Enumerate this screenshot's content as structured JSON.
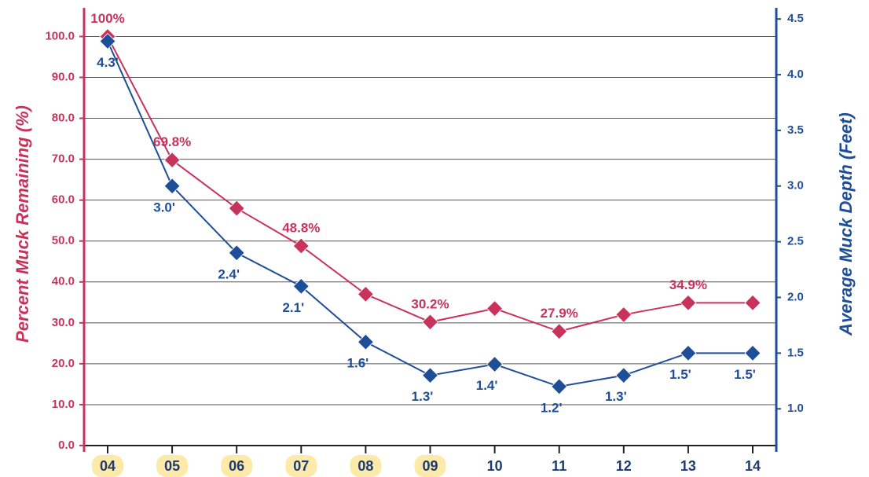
{
  "chart_data": {
    "type": "line",
    "y_label": "Percent Muck Remaining (%)",
    "y2_label": "Average Muck Depth (Feet)",
    "categories": [
      "04",
      "05",
      "06",
      "07",
      "08",
      "09",
      "10",
      "11",
      "12",
      "13",
      "14"
    ],
    "series": [
      {
        "name": "Percent Muck Remaining",
        "color": "#c8335c",
        "axis": "y",
        "values": [
          100,
          69.8,
          58,
          48.8,
          37,
          30.2,
          33.5,
          27.9,
          32,
          34.9,
          34.9
        ],
        "value_labels": [
          "100%",
          "69.8%",
          null,
          "48.8%",
          null,
          "30.2%",
          null,
          "27.9%",
          null,
          "34.9%",
          null
        ]
      },
      {
        "name": "Average Muck Depth",
        "color": "#1f4e99",
        "axis": "y2",
        "values": [
          4.3,
          3.0,
          2.4,
          2.1,
          1.6,
          1.3,
          1.4,
          1.2,
          1.3,
          1.5,
          1.5
        ],
        "value_labels": [
          "4.3'",
          "3.0'",
          "2.4'",
          "2.1'",
          "1.6'",
          "1.3'",
          "1.4'",
          "1.2'",
          "1.3'",
          "1.5'",
          "1.5'"
        ]
      }
    ],
    "ylim": [
      0,
      107
    ],
    "yticks": [
      {
        "value": 0,
        "label": "0.0"
      },
      {
        "value": 10,
        "label": "10.0"
      },
      {
        "value": 20,
        "label": "20.0"
      },
      {
        "value": 30,
        "label": "30.0"
      },
      {
        "value": 40,
        "label": "40.0"
      },
      {
        "value": 50,
        "label": "50.0"
      },
      {
        "value": 60,
        "label": "60.0"
      },
      {
        "value": 70,
        "label": "70.0"
      },
      {
        "value": 80,
        "label": "80.0"
      },
      {
        "value": 90,
        "label": "90.0"
      },
      {
        "value": 100,
        "label": "100.0"
      }
    ],
    "y2lim": [
      0.67,
      4.6
    ],
    "y2ticks": [
      {
        "value": 1,
        "label": "1.0"
      },
      {
        "value": 1.5,
        "label": "1.5"
      },
      {
        "value": 2,
        "label": "2.0"
      },
      {
        "value": 2.5,
        "label": "2.5"
      },
      {
        "value": 3,
        "label": "3.0"
      },
      {
        "value": 3.5,
        "label": "3.5"
      },
      {
        "value": 4,
        "label": "4.0"
      },
      {
        "value": 4.5,
        "label": "4.5"
      }
    ],
    "grid": true
  }
}
